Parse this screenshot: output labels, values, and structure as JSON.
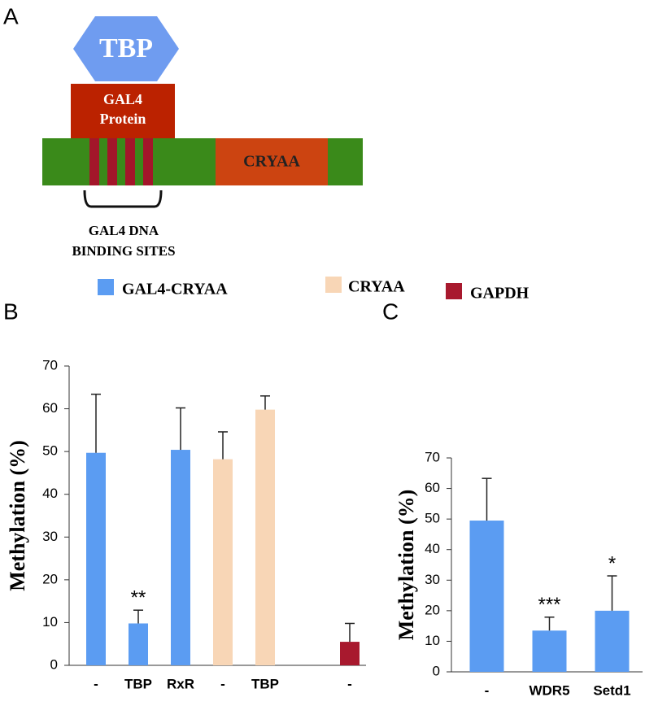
{
  "diagram": {
    "panel": "A",
    "hexagon": "TBP",
    "protein": [
      "GAL4",
      "Protein"
    ],
    "gene": "CRYAA",
    "sites_label": [
      "GAL4 DNA",
      "BINDING SITES"
    ]
  },
  "chart_data": [
    {
      "type": "bar",
      "panel": "B",
      "y_label": "Methylation (%)",
      "categories": [
        "-",
        "TBP",
        "RxR",
        "-",
        "TBP",
        null,
        "-"
      ],
      "series": [
        {
          "name": "GAL4-CRYAA",
          "color": "#5b9cf2",
          "values": [
            49.7,
            9.8,
            50.4,
            null,
            null,
            null,
            null
          ],
          "errors": [
            13.7,
            3.1,
            9.8,
            null,
            null,
            null,
            null
          ]
        },
        {
          "name": "CRYAA",
          "color": "#f8d6b6",
          "values": [
            null,
            null,
            null,
            48.2,
            59.8,
            null,
            null
          ],
          "errors": [
            null,
            null,
            null,
            6.4,
            3.2,
            null,
            null
          ]
        },
        {
          "name": "GAPDH",
          "color": "#a8192e",
          "values": [
            null,
            null,
            null,
            null,
            null,
            null,
            5.5
          ],
          "errors": [
            null,
            null,
            null,
            null,
            null,
            null,
            4.3
          ]
        }
      ],
      "annotations": [
        null,
        "**",
        null,
        null,
        null,
        null,
        null
      ],
      "ylim": [
        0,
        70
      ],
      "yticks": [
        0,
        10,
        20,
        30,
        40,
        50,
        60,
        70
      ]
    },
    {
      "type": "bar",
      "panel": "C",
      "y_label": "Methylation (%)",
      "categories": [
        "-",
        "WDR5",
        "Setd1"
      ],
      "color": "#5b9cf2",
      "values": [
        49.5,
        13.5,
        20
      ],
      "errors": [
        13.8,
        4.4,
        11.4
      ],
      "annotations": [
        null,
        "***",
        "*"
      ],
      "ylim": [
        0,
        70
      ],
      "yticks": [
        0,
        10,
        20,
        30,
        40,
        50,
        60,
        70
      ]
    }
  ]
}
